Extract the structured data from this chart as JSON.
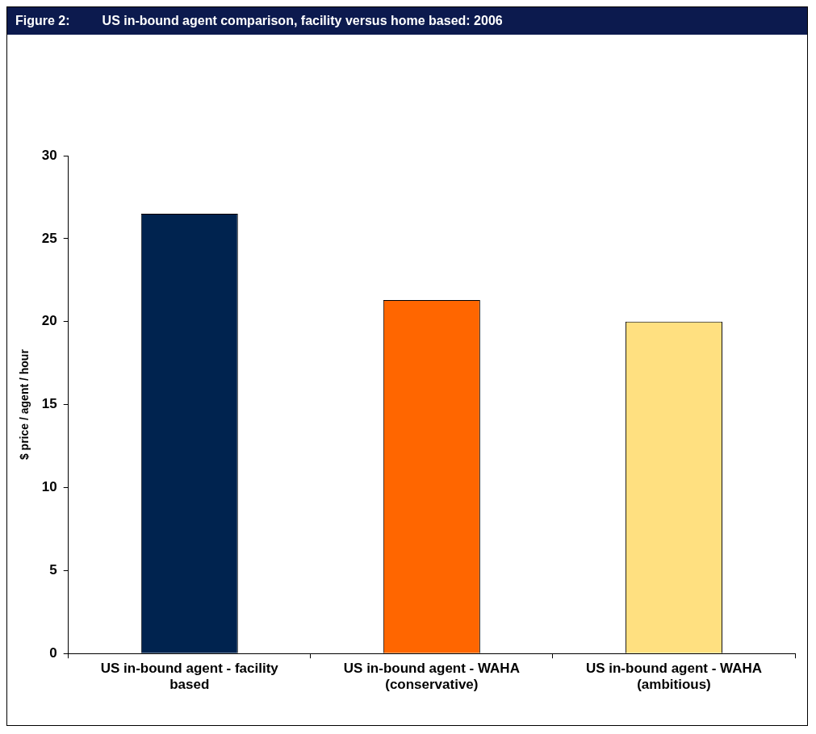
{
  "chart_data": {
    "type": "bar",
    "title": "Figure 2:         US in-bound agent comparison, facility versus home based: 2006",
    "ylabel": "$ price / agent / hour",
    "categories": [
      "US in-bound agent - facility based",
      "US in-bound agent - WAHA (conservative)",
      "US in-bound agent - WAHA (ambitious)"
    ],
    "values": [
      26.5,
      21.3,
      20.0
    ],
    "colors": [
      "#00234f",
      "#ff6600",
      "#ffe080"
    ],
    "ylim": [
      0,
      30
    ],
    "yticks": [
      0,
      5,
      10,
      15,
      20,
      25,
      30
    ],
    "grid": false,
    "legend": false
  }
}
